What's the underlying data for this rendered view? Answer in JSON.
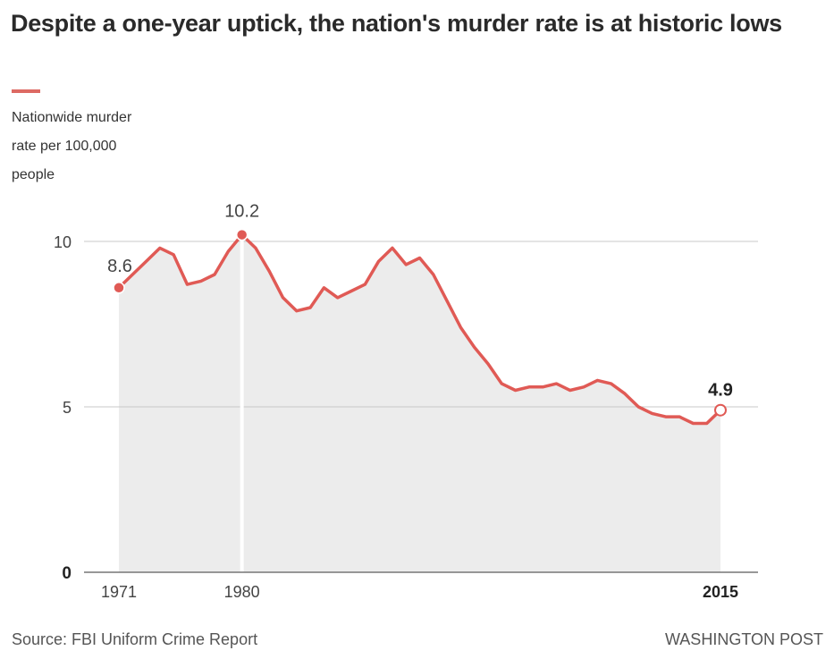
{
  "header": {
    "title": "Despite a one-year uptick, the nation's murder rate is at historic lows",
    "subtitle_lines": [
      "Nationwide murder",
      "rate per 100,000",
      "people"
    ]
  },
  "footer": {
    "source": "Source: FBI Uniform Crime Report",
    "credit": "WASHINGTON POST"
  },
  "colors": {
    "line": "#e05a55",
    "area": "#ececec",
    "grid": "#c8c8c8",
    "accent": "#dd6a63"
  },
  "chart_data": {
    "type": "area",
    "title": "Despite a one-year uptick, the nation's murder rate is at historic lows",
    "ylabel": "Nationwide murder rate per 100,000 people",
    "xlabel": "",
    "xlim": [
      1971,
      2015
    ],
    "ylim": [
      0,
      10
    ],
    "yticks": [
      0,
      5,
      10
    ],
    "ytick_labels": [
      "0",
      "5",
      "10"
    ],
    "xticks": [
      1971,
      1980,
      2015
    ],
    "xtick_labels": [
      "1971",
      "1980",
      "2015"
    ],
    "grid": true,
    "legend": "none",
    "x": [
      1971,
      1972,
      1973,
      1974,
      1975,
      1976,
      1977,
      1978,
      1979,
      1980,
      1981,
      1982,
      1983,
      1984,
      1985,
      1986,
      1987,
      1988,
      1989,
      1990,
      1991,
      1992,
      1993,
      1994,
      1995,
      1996,
      1997,
      1998,
      1999,
      2000,
      2001,
      2002,
      2003,
      2004,
      2005,
      2006,
      2007,
      2008,
      2009,
      2010,
      2011,
      2012,
      2013,
      2014,
      2015
    ],
    "series": [
      {
        "name": "Murder rate per 100,000",
        "values": [
          8.6,
          9.0,
          9.4,
          9.8,
          9.6,
          8.7,
          8.8,
          9.0,
          9.7,
          10.2,
          9.8,
          9.1,
          8.3,
          7.9,
          8.0,
          8.6,
          8.3,
          8.5,
          8.7,
          9.4,
          9.8,
          9.3,
          9.5,
          9.0,
          8.2,
          7.4,
          6.8,
          6.3,
          5.7,
          5.5,
          5.6,
          5.6,
          5.7,
          5.5,
          5.6,
          5.8,
          5.7,
          5.4,
          5.0,
          4.8,
          4.7,
          4.7,
          4.5,
          4.5,
          4.9
        ]
      }
    ],
    "annotations": [
      {
        "x": 1971,
        "y": 8.6,
        "label": "8.6",
        "marker": "filled"
      },
      {
        "x": 1980,
        "y": 10.2,
        "label": "10.2",
        "marker": "filled",
        "vertical_rule": true
      },
      {
        "x": 2015,
        "y": 4.9,
        "label": "4.9",
        "marker": "hollow",
        "bold": true
      }
    ]
  }
}
